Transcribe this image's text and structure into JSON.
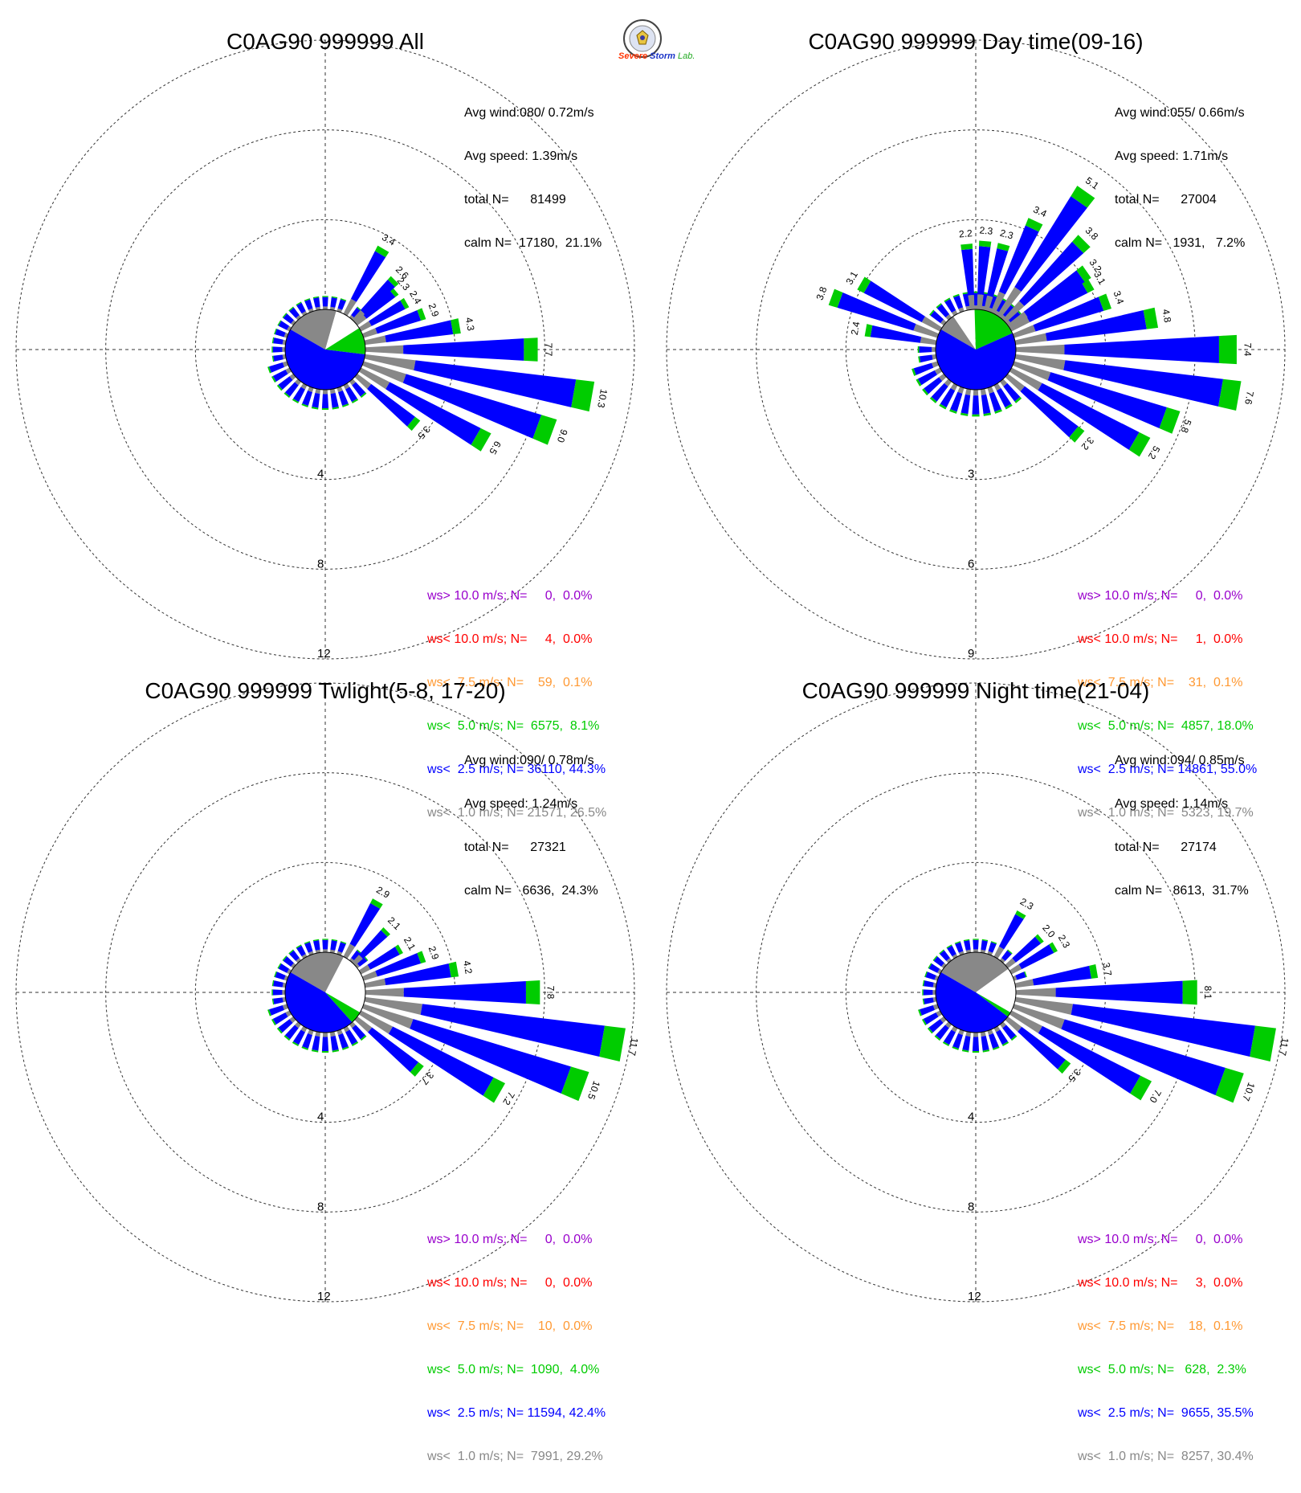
{
  "logo": {
    "text_severe": "Severe",
    "text_storm": "Storm",
    "text_lab": "Lab."
  },
  "colors": {
    "gt10": "#9900cc",
    "lt10": "#ff0000",
    "lt7_5": "#ff9933",
    "lt5": "#00cc00",
    "lt2_5": "#0000ff",
    "lt1": "#888888"
  },
  "chart_data": [
    {
      "type": "wind-rose",
      "title": "C0AG90 999999 All",
      "stats": [
        "Avg wind:080/ 0.72m/s",
        "Avg speed: 1.39m/s",
        "total N=      81499",
        "calm N=  17180,  21.1%"
      ],
      "ring_labels": [
        "4",
        "8",
        "12"
      ],
      "ring_values": [
        4,
        8,
        12
      ],
      "calm_pie": {
        "gray": 21.1,
        "white": 11.6,
        "blue": 56.4,
        "green": 10.9
      },
      "petals": [
        {
          "dir": 90,
          "value": 7.7,
          "label": "7.7"
        },
        {
          "dir": 100,
          "value": 10.3,
          "label": "10.3"
        },
        {
          "dir": 110,
          "value": 9.0,
          "label": "9.0"
        },
        {
          "dir": 120,
          "value": 6.5,
          "label": "6.5"
        },
        {
          "dir": 130,
          "value": 3.5,
          "label": "3.5"
        },
        {
          "dir": 80,
          "value": 4.3,
          "label": "4.3"
        },
        {
          "dir": 70,
          "value": 2.9,
          "label": "2.9"
        },
        {
          "dir": 60,
          "value": 2.4,
          "label": "2.4"
        },
        {
          "dir": 50,
          "value": 2.3,
          "label": "2.3"
        },
        {
          "dir": 45,
          "value": 2.6,
          "label": "2.6"
        },
        {
          "dir": 30,
          "value": 3.4,
          "label": "3.4"
        }
      ],
      "legend": [
        {
          "text": "ws> 10.0 m/s; N=     0,  0.0%",
          "color": "#9900cc"
        },
        {
          "text": "ws< 10.0 m/s; N=     4,  0.0%",
          "color": "#ff0000"
        },
        {
          "text": "ws<  7.5 m/s; N=    59,  0.1%",
          "color": "#ff9933"
        },
        {
          "text": "ws<  5.0 m/s; N=  6575,  8.1%",
          "color": "#00cc00"
        },
        {
          "text": "ws<  2.5 m/s; N= 36110, 44.3%",
          "color": "#0000ff"
        },
        {
          "text": "ws<  1.0 m/s; N= 21571, 26.5%",
          "color": "#888888"
        }
      ]
    },
    {
      "type": "wind-rose",
      "title": "C0AG90 999999 Day time(09-16)",
      "stats": [
        "Avg wind:055/ 0.66m/s",
        "Avg speed: 1.71m/s",
        "total N=      27004",
        "calm N=   1931,   7.2%"
      ],
      "ring_labels": [
        "3",
        "6",
        "9"
      ],
      "ring_values": [
        3,
        6,
        9
      ],
      "calm_pie": {
        "gray": 7.2,
        "white": 9.0,
        "blue": 65.0,
        "green": 18.8
      },
      "petals": [
        {
          "dir": 90,
          "value": 7.4,
          "label": "7.4"
        },
        {
          "dir": 100,
          "value": 7.6,
          "label": "7.6"
        },
        {
          "dir": 110,
          "value": 5.8,
          "label": "5.8"
        },
        {
          "dir": 120,
          "value": 5.2,
          "label": "5.2"
        },
        {
          "dir": 130,
          "value": 3.2,
          "label": "3.2"
        },
        {
          "dir": 80,
          "value": 4.8,
          "label": "4.8"
        },
        {
          "dir": 70,
          "value": 3.4,
          "label": "3.4"
        },
        {
          "dir": 60,
          "value": 3.1,
          "label": "3.1"
        },
        {
          "dir": 55,
          "value": 3.2,
          "label": "3.2"
        },
        {
          "dir": 45,
          "value": 3.8,
          "label": "3.8"
        },
        {
          "dir": 35,
          "value": 5.1,
          "label": "5.1"
        },
        {
          "dir": 25,
          "value": 3.4,
          "label": "3.4"
        },
        {
          "dir": 15,
          "value": 2.3,
          "label": "2.3"
        },
        {
          "dir": 5,
          "value": 2.3,
          "label": "2.3"
        },
        {
          "dir": 355,
          "value": 2.2,
          "label": "2.2"
        },
        {
          "dir": 300,
          "value": 3.1,
          "label": "3.1"
        },
        {
          "dir": 290,
          "value": 3.8,
          "label": "3.8"
        },
        {
          "dir": 280,
          "value": 2.4,
          "label": "2.4"
        }
      ],
      "legend": [
        {
          "text": "ws> 10.0 m/s; N=     0,  0.0%",
          "color": "#9900cc"
        },
        {
          "text": "ws< 10.0 m/s; N=     1,  0.0%",
          "color": "#ff0000"
        },
        {
          "text": "ws<  7.5 m/s; N=    31,  0.1%",
          "color": "#ff9933"
        },
        {
          "text": "ws<  5.0 m/s; N=  4857, 18.0%",
          "color": "#00cc00"
        },
        {
          "text": "ws<  2.5 m/s; N= 14861, 55.0%",
          "color": "#0000ff"
        },
        {
          "text": "ws<  1.0 m/s; N=  5323, 19.7%",
          "color": "#888888"
        }
      ]
    },
    {
      "type": "wind-rose",
      "title": "C0AG90 999999 Twlight(5-8, 17-20)",
      "stats": [
        "Avg wind:090/ 0.78m/s",
        "Avg speed: 1.24m/s",
        "total N=      27321",
        "calm N=   6636,  24.3%"
      ],
      "ring_labels": [
        "4",
        "8",
        "12"
      ],
      "ring_values": [
        4,
        8,
        12
      ],
      "calm_pie": {
        "gray": 24.3,
        "white": 25.7,
        "blue": 45.0,
        "green": 5.0
      },
      "petals": [
        {
          "dir": 90,
          "value": 7.8,
          "label": "7.8"
        },
        {
          "dir": 100,
          "value": 11.7,
          "label": "11.7"
        },
        {
          "dir": 110,
          "value": 10.5,
          "label": "10.5"
        },
        {
          "dir": 120,
          "value": 7.2,
          "label": "7.2"
        },
        {
          "dir": 130,
          "value": 3.7,
          "label": "3.7"
        },
        {
          "dir": 80,
          "value": 4.2,
          "label": "4.2"
        },
        {
          "dir": 70,
          "value": 2.9,
          "label": "2.9"
        },
        {
          "dir": 60,
          "value": 2.1,
          "label": "2.1"
        },
        {
          "dir": 45,
          "value": 2.1,
          "label": "2.1"
        },
        {
          "dir": 30,
          "value": 2.9,
          "label": "2.9"
        }
      ],
      "legend": [
        {
          "text": "ws> 10.0 m/s; N=     0,  0.0%",
          "color": "#9900cc"
        },
        {
          "text": "ws< 10.0 m/s; N=     0,  0.0%",
          "color": "#ff0000"
        },
        {
          "text": "ws<  7.5 m/s; N=    10,  0.0%",
          "color": "#ff9933"
        },
        {
          "text": "ws<  5.0 m/s; N=  1090,  4.0%",
          "color": "#00cc00"
        },
        {
          "text": "ws<  2.5 m/s; N= 11594, 42.4%",
          "color": "#0000ff"
        },
        {
          "text": "ws<  1.0 m/s; N=  7991, 29.2%",
          "color": "#888888"
        }
      ]
    },
    {
      "type": "wind-rose",
      "title": "C0AG90 999999 Night time(21-04)",
      "stats": [
        "Avg wind:094/ 0.85m/s",
        "Avg speed: 1.14m/s",
        "total N=      27174",
        "calm N=   8613,  31.7%"
      ],
      "ring_labels": [
        "4",
        "8",
        "12"
      ],
      "ring_values": [
        4,
        8,
        12
      ],
      "calm_pie": {
        "gray": 31.7,
        "white": 18.3,
        "blue": 48.0,
        "green": 2.0
      },
      "petals": [
        {
          "dir": 90,
          "value": 8.1,
          "label": "8.1"
        },
        {
          "dir": 100,
          "value": 11.7,
          "label": "11.7"
        },
        {
          "dir": 110,
          "value": 10.7,
          "label": "10.7"
        },
        {
          "dir": 120,
          "value": 7.0,
          "label": "7.0"
        },
        {
          "dir": 130,
          "value": 3.5,
          "label": "3.5"
        },
        {
          "dir": 80,
          "value": 3.7,
          "label": "3.7"
        },
        {
          "dir": 60,
          "value": 2.3,
          "label": "2.3"
        },
        {
          "dir": 50,
          "value": 2.0,
          "label": "2.0"
        },
        {
          "dir": 30,
          "value": 2.3,
          "label": "2.3"
        }
      ],
      "legend": [
        {
          "text": "ws> 10.0 m/s; N=     0,  0.0%",
          "color": "#9900cc"
        },
        {
          "text": "ws< 10.0 m/s; N=     3,  0.0%",
          "color": "#ff0000"
        },
        {
          "text": "ws<  7.5 m/s; N=    18,  0.1%",
          "color": "#ff9933"
        },
        {
          "text": "ws<  5.0 m/s; N=   628,  2.3%",
          "color": "#00cc00"
        },
        {
          "text": "ws<  2.5 m/s; N=  9655, 35.5%",
          "color": "#0000ff"
        },
        {
          "text": "ws<  1.0 m/s; N=  8257, 30.4%",
          "color": "#888888"
        }
      ]
    }
  ]
}
